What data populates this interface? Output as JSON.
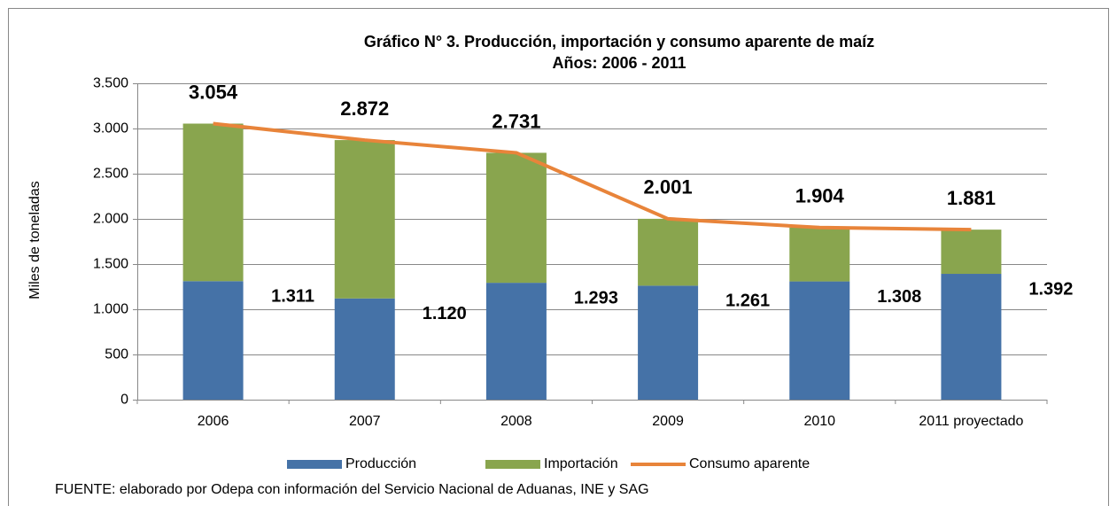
{
  "chart_data": {
    "type": "bar",
    "stacked": true,
    "title": "Gráfico N° 3. Producción, importación y consumo aparente de maíz",
    "subtitle": "Años: 2006 - 2011",
    "y_label": "Miles de toneladas",
    "source": "FUENTE: elaborado por Odepa con información del Servicio Nacional de Aduanas, INE y SAG",
    "categories": [
      "2006",
      "2007",
      "2008",
      "2009",
      "2010",
      "2011 proyectado"
    ],
    "series": [
      {
        "name": "Producción",
        "type": "bar",
        "color": "#4572a7",
        "values": [
          1311,
          1120,
          1293,
          1261,
          1308,
          1392
        ],
        "value_labels": [
          "1.311",
          "1.120",
          "1.293",
          "1.261",
          "1.308",
          "1.392"
        ]
      },
      {
        "name": "Importación",
        "type": "bar",
        "color": "#89a54e",
        "values": [
          1743,
          1752,
          1438,
          740,
          596,
          489
        ]
      },
      {
        "name": "Consumo aparente",
        "type": "line",
        "color": "#e8843a",
        "values": [
          3054,
          2872,
          2731,
          2001,
          1904,
          1881
        ],
        "value_labels": [
          "3.054",
          "2.872",
          "2.731",
          "2.001",
          "1.904",
          "1.881"
        ]
      }
    ],
    "ylim": [
      0,
      3500
    ],
    "yticks": [
      0,
      500,
      {
        "value": 1000,
        "label": "1.000"
      },
      {
        "value": 1500,
        "label": "1.500"
      },
      {
        "value": 2000,
        "label": "2.000"
      },
      {
        "value": 2500,
        "label": "2.500"
      },
      {
        "value": 3000,
        "label": "3.000"
      },
      {
        "value": 3500,
        "label": "3.500"
      }
    ],
    "grid": true,
    "legend": "bottom"
  }
}
